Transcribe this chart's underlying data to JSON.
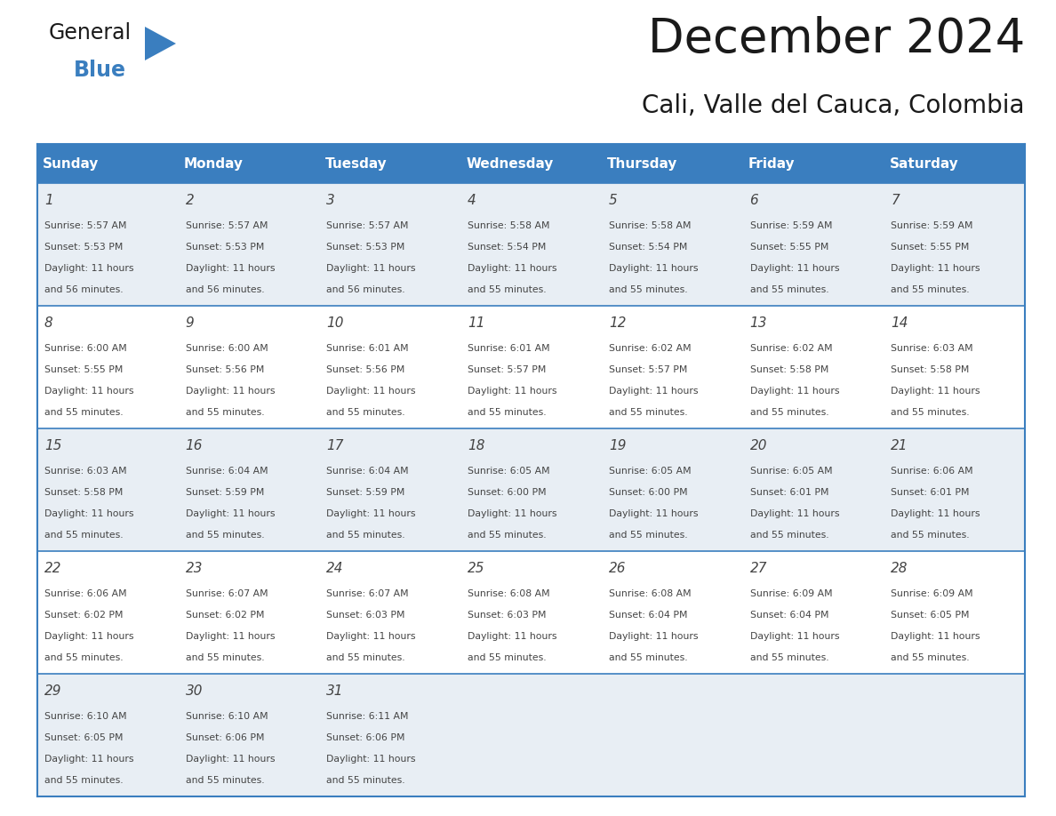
{
  "title": "December 2024",
  "subtitle": "Cali, Valle del Cauca, Colombia",
  "days_of_week": [
    "Sunday",
    "Monday",
    "Tuesday",
    "Wednesday",
    "Thursday",
    "Friday",
    "Saturday"
  ],
  "header_bg": "#3a7ebf",
  "header_text": "#ffffff",
  "row_bg_odd": "#e8eef4",
  "row_bg_even": "#ffffff",
  "border_color": "#3a7ebf",
  "text_color": "#444444",
  "title_color": "#1a1a1a",
  "calendar_data": [
    [
      {
        "day": 1,
        "sunrise": "5:57 AM",
        "sunset": "5:53 PM",
        "daylight_hours": 11,
        "daylight_minutes": 56
      },
      {
        "day": 2,
        "sunrise": "5:57 AM",
        "sunset": "5:53 PM",
        "daylight_hours": 11,
        "daylight_minutes": 56
      },
      {
        "day": 3,
        "sunrise": "5:57 AM",
        "sunset": "5:53 PM",
        "daylight_hours": 11,
        "daylight_minutes": 56
      },
      {
        "day": 4,
        "sunrise": "5:58 AM",
        "sunset": "5:54 PM",
        "daylight_hours": 11,
        "daylight_minutes": 55
      },
      {
        "day": 5,
        "sunrise": "5:58 AM",
        "sunset": "5:54 PM",
        "daylight_hours": 11,
        "daylight_minutes": 55
      },
      {
        "day": 6,
        "sunrise": "5:59 AM",
        "sunset": "5:55 PM",
        "daylight_hours": 11,
        "daylight_minutes": 55
      },
      {
        "day": 7,
        "sunrise": "5:59 AM",
        "sunset": "5:55 PM",
        "daylight_hours": 11,
        "daylight_minutes": 55
      }
    ],
    [
      {
        "day": 8,
        "sunrise": "6:00 AM",
        "sunset": "5:55 PM",
        "daylight_hours": 11,
        "daylight_minutes": 55
      },
      {
        "day": 9,
        "sunrise": "6:00 AM",
        "sunset": "5:56 PM",
        "daylight_hours": 11,
        "daylight_minutes": 55
      },
      {
        "day": 10,
        "sunrise": "6:01 AM",
        "sunset": "5:56 PM",
        "daylight_hours": 11,
        "daylight_minutes": 55
      },
      {
        "day": 11,
        "sunrise": "6:01 AM",
        "sunset": "5:57 PM",
        "daylight_hours": 11,
        "daylight_minutes": 55
      },
      {
        "day": 12,
        "sunrise": "6:02 AM",
        "sunset": "5:57 PM",
        "daylight_hours": 11,
        "daylight_minutes": 55
      },
      {
        "day": 13,
        "sunrise": "6:02 AM",
        "sunset": "5:58 PM",
        "daylight_hours": 11,
        "daylight_minutes": 55
      },
      {
        "day": 14,
        "sunrise": "6:03 AM",
        "sunset": "5:58 PM",
        "daylight_hours": 11,
        "daylight_minutes": 55
      }
    ],
    [
      {
        "day": 15,
        "sunrise": "6:03 AM",
        "sunset": "5:58 PM",
        "daylight_hours": 11,
        "daylight_minutes": 55
      },
      {
        "day": 16,
        "sunrise": "6:04 AM",
        "sunset": "5:59 PM",
        "daylight_hours": 11,
        "daylight_minutes": 55
      },
      {
        "day": 17,
        "sunrise": "6:04 AM",
        "sunset": "5:59 PM",
        "daylight_hours": 11,
        "daylight_minutes": 55
      },
      {
        "day": 18,
        "sunrise": "6:05 AM",
        "sunset": "6:00 PM",
        "daylight_hours": 11,
        "daylight_minutes": 55
      },
      {
        "day": 19,
        "sunrise": "6:05 AM",
        "sunset": "6:00 PM",
        "daylight_hours": 11,
        "daylight_minutes": 55
      },
      {
        "day": 20,
        "sunrise": "6:05 AM",
        "sunset": "6:01 PM",
        "daylight_hours": 11,
        "daylight_minutes": 55
      },
      {
        "day": 21,
        "sunrise": "6:06 AM",
        "sunset": "6:01 PM",
        "daylight_hours": 11,
        "daylight_minutes": 55
      }
    ],
    [
      {
        "day": 22,
        "sunrise": "6:06 AM",
        "sunset": "6:02 PM",
        "daylight_hours": 11,
        "daylight_minutes": 55
      },
      {
        "day": 23,
        "sunrise": "6:07 AM",
        "sunset": "6:02 PM",
        "daylight_hours": 11,
        "daylight_minutes": 55
      },
      {
        "day": 24,
        "sunrise": "6:07 AM",
        "sunset": "6:03 PM",
        "daylight_hours": 11,
        "daylight_minutes": 55
      },
      {
        "day": 25,
        "sunrise": "6:08 AM",
        "sunset": "6:03 PM",
        "daylight_hours": 11,
        "daylight_minutes": 55
      },
      {
        "day": 26,
        "sunrise": "6:08 AM",
        "sunset": "6:04 PM",
        "daylight_hours": 11,
        "daylight_minutes": 55
      },
      {
        "day": 27,
        "sunrise": "6:09 AM",
        "sunset": "6:04 PM",
        "daylight_hours": 11,
        "daylight_minutes": 55
      },
      {
        "day": 28,
        "sunrise": "6:09 AM",
        "sunset": "6:05 PM",
        "daylight_hours": 11,
        "daylight_minutes": 55
      }
    ],
    [
      {
        "day": 29,
        "sunrise": "6:10 AM",
        "sunset": "6:05 PM",
        "daylight_hours": 11,
        "daylight_minutes": 55
      },
      {
        "day": 30,
        "sunrise": "6:10 AM",
        "sunset": "6:06 PM",
        "daylight_hours": 11,
        "daylight_minutes": 55
      },
      {
        "day": 31,
        "sunrise": "6:11 AM",
        "sunset": "6:06 PM",
        "daylight_hours": 11,
        "daylight_minutes": 55
      },
      null,
      null,
      null,
      null
    ]
  ],
  "logo_text_general": "General",
  "logo_text_blue": "Blue",
  "logo_color_general": "#1a1a1a",
  "logo_color_blue": "#3a7ebf",
  "logo_triangle_color": "#3a7ebf",
  "fig_width": 11.88,
  "fig_height": 9.18,
  "dpi": 100
}
